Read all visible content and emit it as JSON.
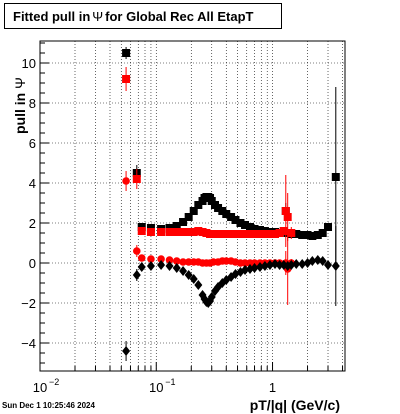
{
  "title": {
    "prefix": "Fitted pull in",
    "symbol": "Ψ",
    "suffix": "for Global Rec All EtapT"
  },
  "timestamp": "Sun Dec  1 10:25:46 2024",
  "chart_data": {
    "type": "scatter",
    "xlabel": "pT/|q| (GeV/c)",
    "ylabel": {
      "prefix": "pull in",
      "symbol": "Ψ"
    },
    "xscale": "log",
    "xlim": [
      0.01,
      4.2
    ],
    "ylim": [
      -5.4,
      11.1
    ],
    "grid": true,
    "y_ticks": [
      -4,
      -2,
      0,
      2,
      4,
      6,
      8,
      10
    ],
    "y_tick_labels": [
      "−4",
      "−2",
      "0",
      "2",
      "4",
      "6",
      "8",
      "10"
    ],
    "x_ticks": [
      0.01,
      0.1,
      1
    ],
    "x_tick_labels": [
      "10",
      "10",
      "1"
    ],
    "x_tick_label_exponents": [
      "−2",
      "−1",
      ""
    ],
    "series": [
      {
        "color": "#000000",
        "marker": "square",
        "x": [
          0.055,
          0.068,
          0.075,
          0.09,
          0.11,
          0.13,
          0.15,
          0.17,
          0.19,
          0.21,
          0.23,
          0.25,
          0.26,
          0.27,
          0.28,
          0.29,
          0.3,
          0.32,
          0.34,
          0.37,
          0.4,
          0.44,
          0.48,
          0.53,
          0.58,
          0.64,
          0.7,
          0.78,
          0.86,
          0.95,
          1.05,
          1.15,
          1.25,
          1.3,
          1.35,
          1.45,
          1.6,
          1.8,
          2.0,
          2.2,
          2.45,
          2.7,
          3.0,
          3.5
        ],
        "y": [
          10.5,
          4.5,
          1.8,
          1.75,
          1.7,
          1.75,
          1.85,
          2.05,
          2.3,
          2.6,
          2.9,
          3.1,
          3.25,
          3.3,
          3.3,
          3.25,
          3.1,
          2.9,
          2.75,
          2.6,
          2.45,
          2.3,
          2.15,
          2.0,
          1.9,
          1.8,
          1.7,
          1.65,
          1.6,
          1.55,
          1.55,
          1.5,
          1.6,
          2.6,
          1.5,
          1.45,
          1.45,
          1.4,
          1.4,
          1.35,
          1.4,
          1.5,
          1.8,
          4.3
        ],
        "yerr": [
          0.3,
          0.4,
          0.15,
          0.1,
          0.08,
          0.08,
          0.08,
          0.08,
          0.08,
          0.1,
          0.1,
          0.1,
          0.1,
          0.1,
          0.1,
          0.1,
          0.1,
          0.08,
          0.08,
          0.08,
          0.08,
          0.08,
          0.08,
          0.08,
          0.08,
          0.08,
          0.08,
          0.08,
          0.08,
          0.1,
          0.1,
          0.1,
          0.15,
          0.4,
          0.2,
          0.15,
          0.1,
          0.1,
          0.1,
          0.1,
          0.1,
          0.1,
          0.15,
          4.5
        ]
      },
      {
        "color": "#ff0000",
        "marker": "square",
        "x": [
          0.055,
          0.068,
          0.075,
          0.09,
          0.11,
          0.13,
          0.15,
          0.17,
          0.19,
          0.21,
          0.23,
          0.25,
          0.27,
          0.29,
          0.31,
          0.34,
          0.37,
          0.4,
          0.44,
          0.48,
          0.53,
          0.58,
          0.64,
          0.7,
          0.78,
          0.86,
          0.95,
          1.05,
          1.15,
          1.25,
          1.3,
          1.35,
          1.45
        ],
        "y": [
          9.2,
          4.2,
          1.6,
          1.55,
          1.55,
          1.55,
          1.55,
          1.55,
          1.55,
          1.55,
          1.6,
          1.55,
          1.5,
          1.45,
          1.45,
          1.45,
          1.45,
          1.45,
          1.45,
          1.45,
          1.45,
          1.45,
          1.45,
          1.45,
          1.45,
          1.45,
          1.45,
          1.45,
          1.5,
          1.6,
          2.6,
          2.3,
          1.5
        ],
        "yerr": [
          0.6,
          0.5,
          0.15,
          0.1,
          0.08,
          0.08,
          0.08,
          0.08,
          0.08,
          0.08,
          0.08,
          0.08,
          0.08,
          0.08,
          0.08,
          0.08,
          0.08,
          0.08,
          0.08,
          0.08,
          0.08,
          0.08,
          0.08,
          0.08,
          0.08,
          0.08,
          0.08,
          0.1,
          0.1,
          0.2,
          1.8,
          1.2,
          0.3
        ]
      },
      {
        "color": "#ff0000",
        "marker": "circle",
        "x": [
          0.055,
          0.068,
          0.075,
          0.09,
          0.11,
          0.13,
          0.15,
          0.17,
          0.19,
          0.21,
          0.23,
          0.25,
          0.27,
          0.29,
          0.31,
          0.34,
          0.37,
          0.4,
          0.44,
          0.48,
          0.53,
          0.58,
          0.64,
          0.7,
          0.78,
          0.86,
          0.95,
          1.05,
          1.15,
          1.25,
          1.3,
          1.35,
          1.45
        ],
        "y": [
          4.1,
          0.6,
          0.25,
          0.2,
          0.2,
          0.15,
          0.1,
          0.05,
          0.05,
          0.05,
          0.05,
          0.0,
          0.0,
          0.0,
          0.05,
          0.05,
          0.1,
          0.1,
          0.1,
          0.05,
          0.0,
          0.0,
          0.0,
          0.0,
          0.0,
          0.0,
          0.0,
          0.0,
          0.0,
          -0.05,
          0.0,
          -0.3,
          0.0
        ],
        "yerr": [
          0.5,
          0.3,
          0.15,
          0.1,
          0.08,
          0.08,
          0.08,
          0.08,
          0.08,
          0.08,
          0.08,
          0.08,
          0.08,
          0.08,
          0.08,
          0.08,
          0.08,
          0.08,
          0.08,
          0.08,
          0.08,
          0.08,
          0.08,
          0.08,
          0.08,
          0.08,
          0.08,
          0.1,
          0.1,
          0.15,
          0.6,
          1.8,
          0.2
        ]
      },
      {
        "color": "#000000",
        "marker": "diamond",
        "x": [
          0.055,
          0.068,
          0.075,
          0.09,
          0.11,
          0.13,
          0.15,
          0.17,
          0.19,
          0.21,
          0.23,
          0.25,
          0.26,
          0.27,
          0.28,
          0.29,
          0.3,
          0.32,
          0.34,
          0.37,
          0.4,
          0.44,
          0.48,
          0.53,
          0.58,
          0.64,
          0.7,
          0.78,
          0.86,
          0.95,
          1.05,
          1.15,
          1.25,
          1.35,
          1.45,
          1.6,
          1.8,
          2.0,
          2.2,
          2.45,
          2.7,
          3.0,
          3.5
        ],
        "y": [
          -4.4,
          -0.6,
          -0.2,
          -0.15,
          -0.1,
          -0.15,
          -0.25,
          -0.4,
          -0.6,
          -0.8,
          -1.1,
          -1.6,
          -1.8,
          -1.95,
          -2.0,
          -1.9,
          -1.7,
          -1.4,
          -1.2,
          -1.0,
          -0.85,
          -0.7,
          -0.55,
          -0.45,
          -0.35,
          -0.3,
          -0.25,
          -0.2,
          -0.15,
          -0.1,
          -0.05,
          -0.1,
          -0.1,
          -0.15,
          -0.1,
          -0.05,
          -0.05,
          0.0,
          0.1,
          0.15,
          0.1,
          -0.1,
          -0.15
        ],
        "yerr": [
          0.5,
          0.3,
          0.15,
          0.1,
          0.08,
          0.08,
          0.08,
          0.08,
          0.08,
          0.1,
          0.1,
          0.1,
          0.1,
          0.1,
          0.1,
          0.1,
          0.1,
          0.08,
          0.08,
          0.08,
          0.08,
          0.08,
          0.08,
          0.08,
          0.08,
          0.08,
          0.08,
          0.08,
          0.08,
          0.08,
          0.1,
          0.1,
          0.15,
          0.2,
          0.15,
          0.1,
          0.1,
          0.1,
          0.1,
          0.1,
          0.1,
          0.15,
          2.0
        ]
      }
    ]
  }
}
